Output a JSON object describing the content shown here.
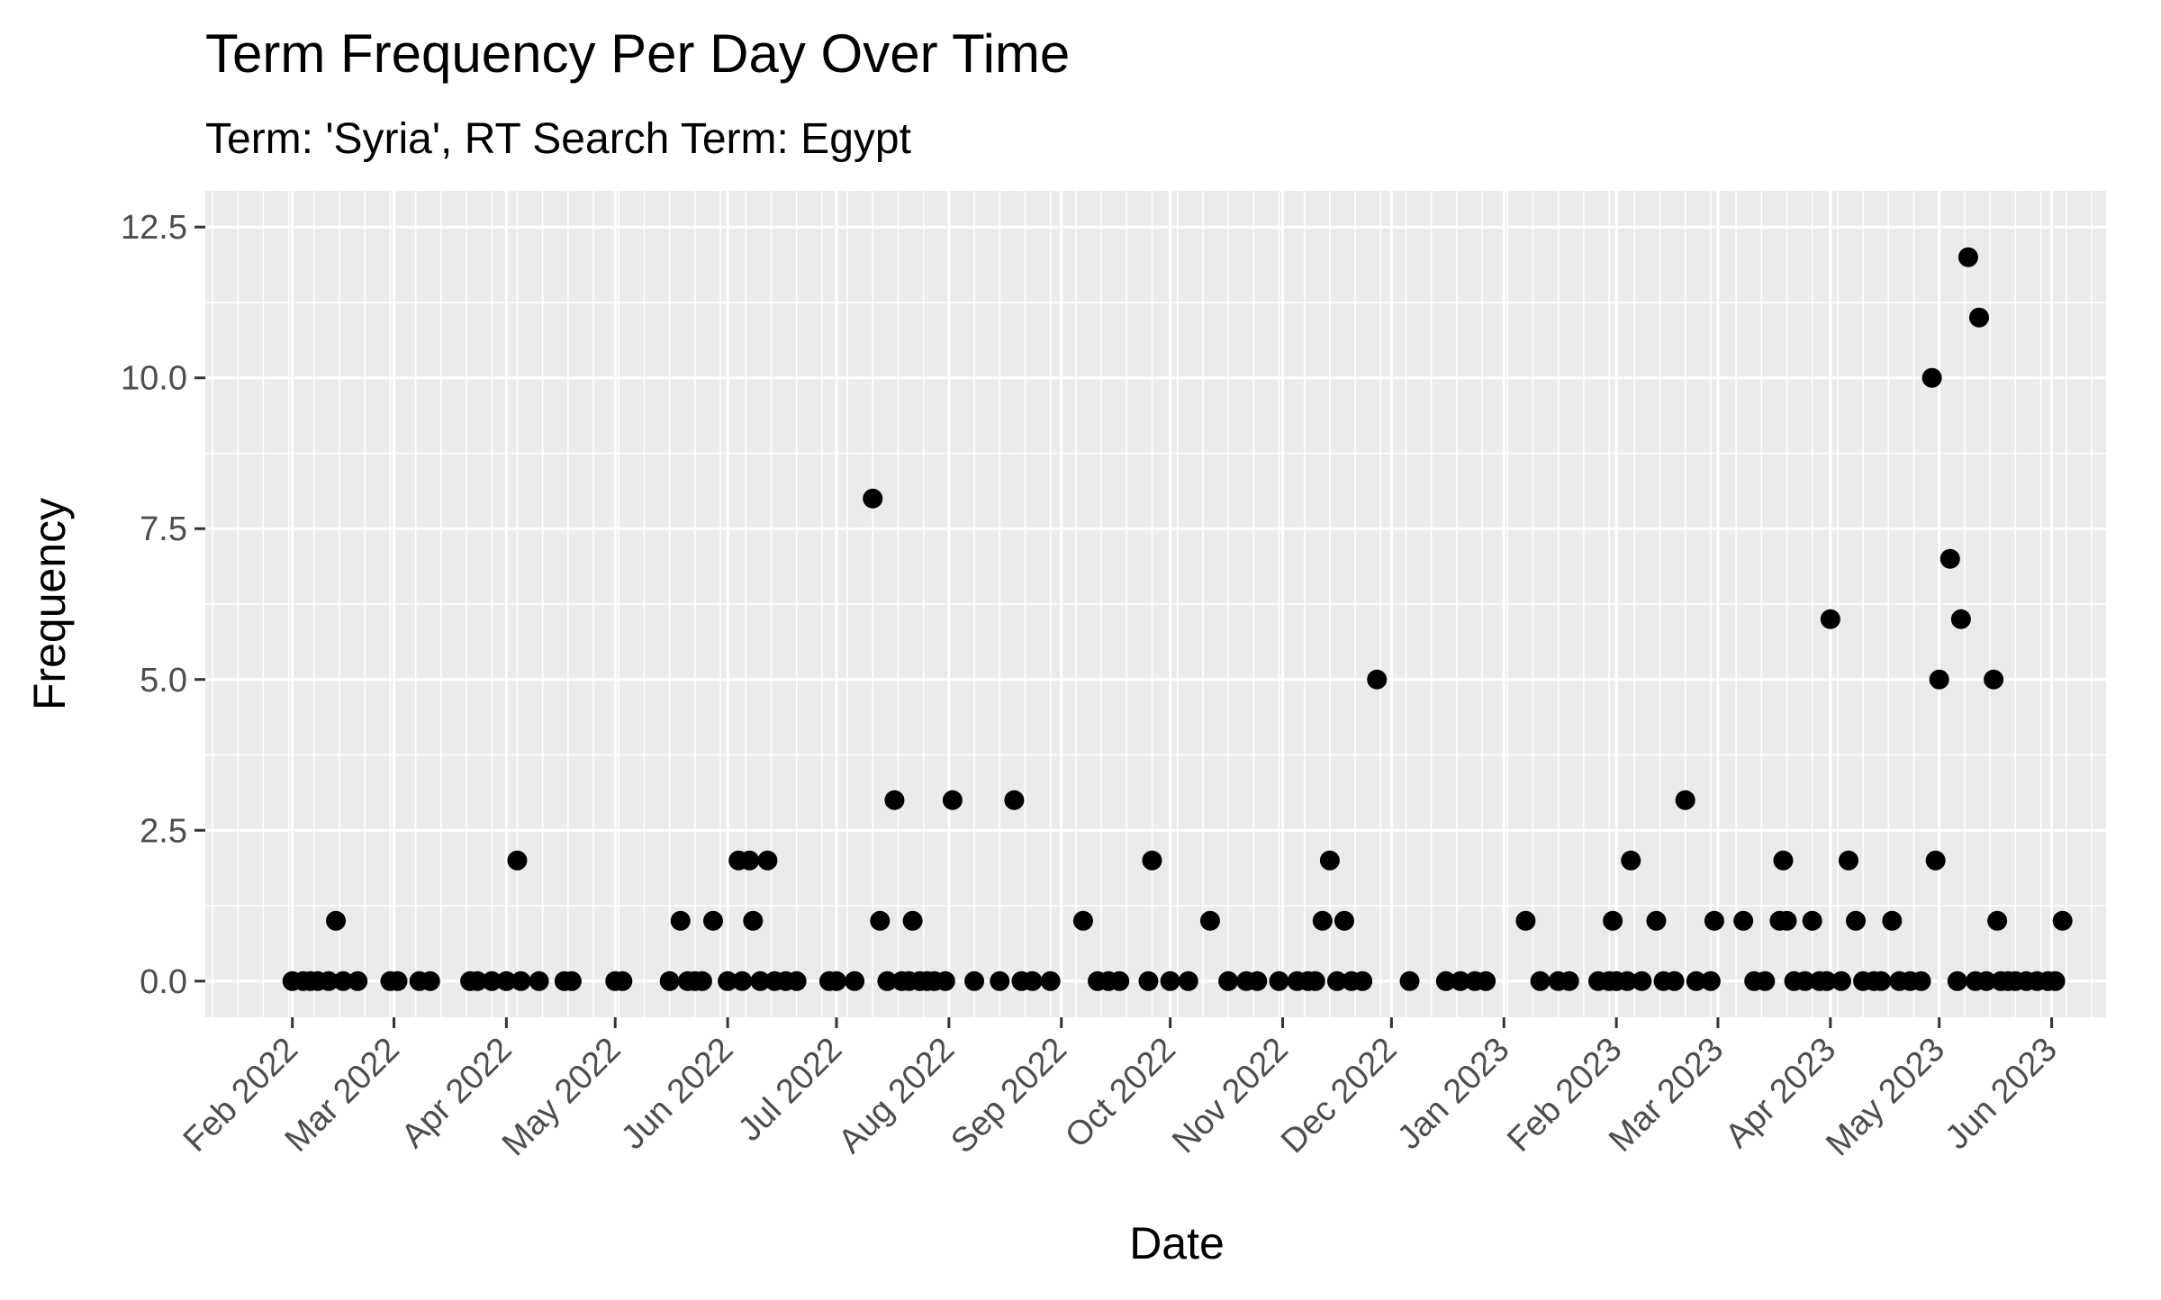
{
  "chart_data": {
    "type": "scatter",
    "title": "Term Frequency Per Day Over Time",
    "subtitle": "Term: 'Syria', RT Search Term: Egypt",
    "xlabel": "Date",
    "ylabel": "Frequency",
    "grid": true,
    "legend": "none",
    "xlim": [
      "2022-01-08",
      "2023-06-16"
    ],
    "ylim": [
      -0.6,
      13.1
    ],
    "y_ticks": [
      0.0,
      2.5,
      5.0,
      7.5,
      10.0,
      12.5
    ],
    "y_tick_labels": [
      "0.0",
      "2.5",
      "5.0",
      "7.5",
      "10.0",
      "12.5"
    ],
    "x_ticks": [
      "2022-02-01",
      "2022-03-01",
      "2022-04-01",
      "2022-05-01",
      "2022-06-01",
      "2022-07-01",
      "2022-08-01",
      "2022-09-01",
      "2022-10-01",
      "2022-11-01",
      "2022-12-01",
      "2023-01-01",
      "2023-02-01",
      "2023-03-01",
      "2023-04-01",
      "2023-05-01",
      "2023-06-01"
    ],
    "x_tick_labels": [
      "Feb 2022",
      "Mar 2022",
      "Apr 2022",
      "May 2022",
      "Jun 2022",
      "Jul 2022",
      "Aug 2022",
      "Sep 2022",
      "Oct 2022",
      "Nov 2022",
      "Dec 2022",
      "Jan 2023",
      "Feb 2023",
      "Mar 2023",
      "Apr 2023",
      "May 2023",
      "Jun 2023"
    ],
    "colors": {
      "panel": "#EBEBEB",
      "grid": "#FFFFFF",
      "point": "#000000",
      "tick": "#333333"
    },
    "points": [
      {
        "x": "2022-02-01",
        "y": 0
      },
      {
        "x": "2022-02-04",
        "y": 0
      },
      {
        "x": "2022-02-06",
        "y": 0
      },
      {
        "x": "2022-02-08",
        "y": 0
      },
      {
        "x": "2022-02-11",
        "y": 0
      },
      {
        "x": "2022-02-13",
        "y": 1
      },
      {
        "x": "2022-02-15",
        "y": 0
      },
      {
        "x": "2022-02-19",
        "y": 0
      },
      {
        "x": "2022-02-28",
        "y": 0
      },
      {
        "x": "2022-03-02",
        "y": 0
      },
      {
        "x": "2022-03-08",
        "y": 0
      },
      {
        "x": "2022-03-11",
        "y": 0
      },
      {
        "x": "2022-03-22",
        "y": 0
      },
      {
        "x": "2022-03-24",
        "y": 0
      },
      {
        "x": "2022-03-28",
        "y": 0
      },
      {
        "x": "2022-04-01",
        "y": 0
      },
      {
        "x": "2022-04-04",
        "y": 2
      },
      {
        "x": "2022-04-05",
        "y": 0
      },
      {
        "x": "2022-04-10",
        "y": 0
      },
      {
        "x": "2022-04-17",
        "y": 0
      },
      {
        "x": "2022-04-19",
        "y": 0
      },
      {
        "x": "2022-05-01",
        "y": 0
      },
      {
        "x": "2022-05-03",
        "y": 0
      },
      {
        "x": "2022-05-16",
        "y": 0
      },
      {
        "x": "2022-05-19",
        "y": 1
      },
      {
        "x": "2022-05-21",
        "y": 0
      },
      {
        "x": "2022-05-23",
        "y": 0
      },
      {
        "x": "2022-05-25",
        "y": 0
      },
      {
        "x": "2022-05-28",
        "y": 1
      },
      {
        "x": "2022-06-01",
        "y": 0
      },
      {
        "x": "2022-06-04",
        "y": 2
      },
      {
        "x": "2022-06-05",
        "y": 0
      },
      {
        "x": "2022-06-07",
        "y": 2
      },
      {
        "x": "2022-06-08",
        "y": 1
      },
      {
        "x": "2022-06-10",
        "y": 0
      },
      {
        "x": "2022-06-12",
        "y": 2
      },
      {
        "x": "2022-06-14",
        "y": 0
      },
      {
        "x": "2022-06-17",
        "y": 0
      },
      {
        "x": "2022-06-20",
        "y": 0
      },
      {
        "x": "2022-06-29",
        "y": 0
      },
      {
        "x": "2022-07-01",
        "y": 0
      },
      {
        "x": "2022-07-06",
        "y": 0
      },
      {
        "x": "2022-07-11",
        "y": 8
      },
      {
        "x": "2022-07-13",
        "y": 1
      },
      {
        "x": "2022-07-15",
        "y": 0
      },
      {
        "x": "2022-07-17",
        "y": 3
      },
      {
        "x": "2022-07-19",
        "y": 0
      },
      {
        "x": "2022-07-21",
        "y": 0
      },
      {
        "x": "2022-07-22",
        "y": 1
      },
      {
        "x": "2022-07-24",
        "y": 0
      },
      {
        "x": "2022-07-26",
        "y": 0
      },
      {
        "x": "2022-07-28",
        "y": 0
      },
      {
        "x": "2022-07-31",
        "y": 0
      },
      {
        "x": "2022-08-02",
        "y": 3
      },
      {
        "x": "2022-08-08",
        "y": 0
      },
      {
        "x": "2022-08-15",
        "y": 0
      },
      {
        "x": "2022-08-19",
        "y": 3
      },
      {
        "x": "2022-08-21",
        "y": 0
      },
      {
        "x": "2022-08-24",
        "y": 0
      },
      {
        "x": "2022-08-29",
        "y": 0
      },
      {
        "x": "2022-09-07",
        "y": 1
      },
      {
        "x": "2022-09-11",
        "y": 0
      },
      {
        "x": "2022-09-14",
        "y": 0
      },
      {
        "x": "2022-09-17",
        "y": 0
      },
      {
        "x": "2022-09-25",
        "y": 0
      },
      {
        "x": "2022-09-26",
        "y": 2
      },
      {
        "x": "2022-10-01",
        "y": 0
      },
      {
        "x": "2022-10-06",
        "y": 0
      },
      {
        "x": "2022-10-12",
        "y": 1
      },
      {
        "x": "2022-10-17",
        "y": 0
      },
      {
        "x": "2022-10-22",
        "y": 0
      },
      {
        "x": "2022-10-25",
        "y": 0
      },
      {
        "x": "2022-10-31",
        "y": 0
      },
      {
        "x": "2022-11-05",
        "y": 0
      },
      {
        "x": "2022-11-08",
        "y": 0
      },
      {
        "x": "2022-11-10",
        "y": 0
      },
      {
        "x": "2022-11-12",
        "y": 1
      },
      {
        "x": "2022-11-14",
        "y": 2
      },
      {
        "x": "2022-11-16",
        "y": 0
      },
      {
        "x": "2022-11-18",
        "y": 1
      },
      {
        "x": "2022-11-20",
        "y": 0
      },
      {
        "x": "2022-11-23",
        "y": 0
      },
      {
        "x": "2022-11-27",
        "y": 5
      },
      {
        "x": "2022-12-06",
        "y": 0
      },
      {
        "x": "2022-12-16",
        "y": 0
      },
      {
        "x": "2022-12-20",
        "y": 0
      },
      {
        "x": "2022-12-24",
        "y": 0
      },
      {
        "x": "2022-12-27",
        "y": 0
      },
      {
        "x": "2023-01-07",
        "y": 1
      },
      {
        "x": "2023-01-11",
        "y": 0
      },
      {
        "x": "2023-01-16",
        "y": 0
      },
      {
        "x": "2023-01-19",
        "y": 0
      },
      {
        "x": "2023-01-27",
        "y": 0
      },
      {
        "x": "2023-01-30",
        "y": 0
      },
      {
        "x": "2023-01-31",
        "y": 1
      },
      {
        "x": "2023-02-01",
        "y": 0
      },
      {
        "x": "2023-02-04",
        "y": 0
      },
      {
        "x": "2023-02-05",
        "y": 2
      },
      {
        "x": "2023-02-08",
        "y": 0
      },
      {
        "x": "2023-02-12",
        "y": 1
      },
      {
        "x": "2023-02-14",
        "y": 0
      },
      {
        "x": "2023-02-17",
        "y": 0
      },
      {
        "x": "2023-02-20",
        "y": 3
      },
      {
        "x": "2023-02-23",
        "y": 0
      },
      {
        "x": "2023-02-27",
        "y": 0
      },
      {
        "x": "2023-02-28",
        "y": 1
      },
      {
        "x": "2023-03-08",
        "y": 1
      },
      {
        "x": "2023-03-11",
        "y": 0
      },
      {
        "x": "2023-03-14",
        "y": 0
      },
      {
        "x": "2023-03-18",
        "y": 1
      },
      {
        "x": "2023-03-19",
        "y": 2
      },
      {
        "x": "2023-03-20",
        "y": 1
      },
      {
        "x": "2023-03-22",
        "y": 0
      },
      {
        "x": "2023-03-25",
        "y": 0
      },
      {
        "x": "2023-03-27",
        "y": 1
      },
      {
        "x": "2023-03-29",
        "y": 0
      },
      {
        "x": "2023-03-31",
        "y": 0
      },
      {
        "x": "2023-04-01",
        "y": 6
      },
      {
        "x": "2023-04-04",
        "y": 0
      },
      {
        "x": "2023-04-06",
        "y": 2
      },
      {
        "x": "2023-04-08",
        "y": 1
      },
      {
        "x": "2023-04-10",
        "y": 0
      },
      {
        "x": "2023-04-13",
        "y": 0
      },
      {
        "x": "2023-04-15",
        "y": 0
      },
      {
        "x": "2023-04-18",
        "y": 1
      },
      {
        "x": "2023-04-20",
        "y": 0
      },
      {
        "x": "2023-04-23",
        "y": 0
      },
      {
        "x": "2023-04-26",
        "y": 0
      },
      {
        "x": "2023-04-29",
        "y": 10
      },
      {
        "x": "2023-04-30",
        "y": 2
      },
      {
        "x": "2023-05-01",
        "y": 5
      },
      {
        "x": "2023-05-04",
        "y": 7
      },
      {
        "x": "2023-05-06",
        "y": 0
      },
      {
        "x": "2023-05-07",
        "y": 6
      },
      {
        "x": "2023-05-09",
        "y": 12
      },
      {
        "x": "2023-05-11",
        "y": 0
      },
      {
        "x": "2023-05-12",
        "y": 11
      },
      {
        "x": "2023-05-14",
        "y": 0
      },
      {
        "x": "2023-05-16",
        "y": 5
      },
      {
        "x": "2023-05-17",
        "y": 1
      },
      {
        "x": "2023-05-18",
        "y": 0
      },
      {
        "x": "2023-05-20",
        "y": 0
      },
      {
        "x": "2023-05-22",
        "y": 0
      },
      {
        "x": "2023-05-25",
        "y": 0
      },
      {
        "x": "2023-05-28",
        "y": 0
      },
      {
        "x": "2023-05-31",
        "y": 0
      },
      {
        "x": "2023-06-02",
        "y": 0
      },
      {
        "x": "2023-06-04",
        "y": 1
      }
    ]
  }
}
